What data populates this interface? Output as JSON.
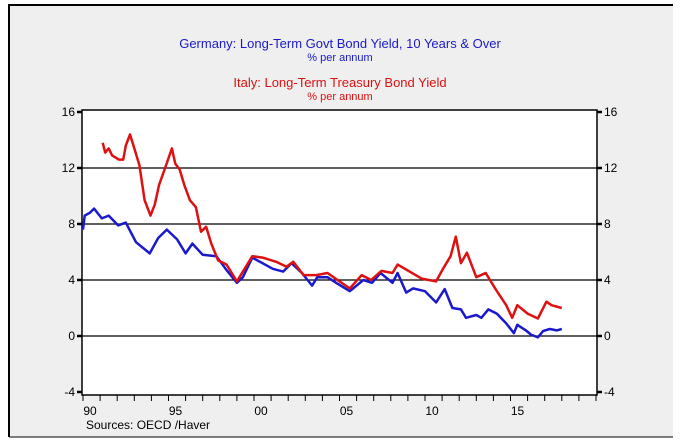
{
  "chart_data": {
    "type": "line",
    "titles": [
      {
        "text": "Germany: Long-Term Govt Bond Yield, 10 Years & Over",
        "unit": "% per annum",
        "color": "#1a1acc"
      },
      {
        "text": "Italy: Long-Term Treasury Bond Yield",
        "unit": "% per annum",
        "color": "#dd1111"
      }
    ],
    "source": "Sources:  OECD /Haver",
    "xlim": [
      1990,
      2020
    ],
    "x_tick_labels": [
      {
        "year": 1990,
        "label": "90"
      },
      {
        "year": 1995,
        "label": "95"
      },
      {
        "year": 2000,
        "label": "00"
      },
      {
        "year": 2005,
        "label": "05"
      },
      {
        "year": 2010,
        "label": "10"
      },
      {
        "year": 2015,
        "label": "15"
      }
    ],
    "ylim": [
      -4,
      16
    ],
    "y_ticks": [
      -4,
      0,
      4,
      8,
      12,
      16
    ],
    "grid": "horizontal",
    "series": [
      {
        "name": "Germany: Long-Term Govt Bond Yield, 10 Years & Over",
        "color": "#1a1acc",
        "x": [
          1990.0,
          1990.1,
          1990.4,
          1990.65,
          1991.1,
          1991.5,
          1992.05,
          1992.5,
          1993.1,
          1993.9,
          1994.4,
          1994.9,
          1995.5,
          1996.0,
          1996.4,
          1997.0,
          1997.8,
          1998.4,
          1999.0,
          1999.35,
          1999.9,
          2000.5,
          2001.1,
          2001.7,
          2002.2,
          2002.8,
          2003.4,
          2003.7,
          2004.3,
          2004.8,
          2005.6,
          2006.4,
          2006.9,
          2007.4,
          2008.1,
          2008.4,
          2008.9,
          2009.3,
          2010.0,
          2010.65,
          2011.15,
          2011.6,
          2012.1,
          2012.4,
          2013.0,
          2013.3,
          2013.7,
          2014.2,
          2014.75,
          2015.2,
          2015.4,
          2015.9,
          2016.2,
          2016.6,
          2016.9,
          2017.3,
          2017.7,
          2018.0
        ],
        "y": [
          7.6,
          8.6,
          8.8,
          9.1,
          8.4,
          8.6,
          7.9,
          8.1,
          6.7,
          5.9,
          7.0,
          7.6,
          6.9,
          5.9,
          6.6,
          5.8,
          5.7,
          4.7,
          3.8,
          4.2,
          5.6,
          5.2,
          4.8,
          4.6,
          5.2,
          4.5,
          3.6,
          4.2,
          4.2,
          3.8,
          3.2,
          4.0,
          3.8,
          4.5,
          3.8,
          4.5,
          3.1,
          3.4,
          3.2,
          2.4,
          3.35,
          2.0,
          1.9,
          1.3,
          1.5,
          1.3,
          1.9,
          1.6,
          0.9,
          0.2,
          0.8,
          0.4,
          0.1,
          -0.1,
          0.35,
          0.5,
          0.4,
          0.5
        ]
      },
      {
        "name": "Italy: Long-Term Treasury Bond Yield",
        "color": "#dd1111",
        "x": [
          1991.15,
          1991.3,
          1991.5,
          1991.7,
          1992.1,
          1992.35,
          1992.5,
          1992.75,
          1993.05,
          1993.3,
          1993.6,
          1993.95,
          1994.2,
          1994.45,
          1994.8,
          1995.2,
          1995.4,
          1995.65,
          1995.95,
          1996.25,
          1996.6,
          1996.9,
          1997.2,
          1997.5,
          1997.9,
          1998.4,
          1999.0,
          1999.9,
          2000.5,
          2001.3,
          2001.9,
          2002.3,
          2002.9,
          2003.65,
          2004.3,
          2005.0,
          2005.6,
          2006.3,
          2006.85,
          2007.45,
          2008.1,
          2008.4,
          2009.1,
          2009.8,
          2010.65,
          2011.05,
          2011.5,
          2011.8,
          2012.1,
          2012.45,
          2013.0,
          2013.55,
          2014.15,
          2014.75,
          2015.1,
          2015.4,
          2016.0,
          2016.6,
          2017.1,
          2017.4,
          2018.0
        ],
        "y": [
          13.8,
          13.1,
          13.4,
          12.9,
          12.6,
          12.6,
          13.6,
          14.4,
          13.2,
          12.2,
          9.7,
          8.6,
          9.4,
          10.8,
          12.0,
          13.4,
          12.3,
          11.9,
          10.7,
          9.7,
          9.2,
          7.45,
          7.8,
          6.6,
          5.4,
          5.1,
          3.9,
          5.7,
          5.6,
          5.3,
          4.95,
          5.3,
          4.35,
          4.35,
          4.5,
          3.9,
          3.4,
          4.35,
          4.0,
          4.65,
          4.5,
          5.1,
          4.6,
          4.1,
          3.9,
          4.8,
          5.7,
          7.1,
          5.2,
          5.95,
          4.2,
          4.5,
          3.3,
          2.2,
          1.3,
          2.2,
          1.6,
          1.25,
          2.45,
          2.2,
          2.0
        ]
      }
    ]
  }
}
